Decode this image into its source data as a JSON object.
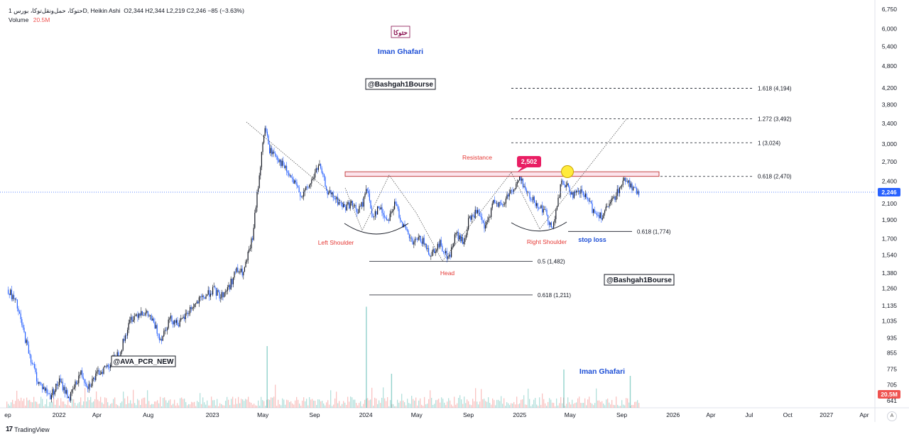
{
  "header": {
    "symbol": "1 حتوکا، حمل‌ونقل‌توکا، بورس‌D",
    "chart_style": "Heikin Ashi",
    "ohlc": "O2,344  H2,344  L2,219  C2,246  −85 (−3.63%)",
    "volume_label": "Volume",
    "volume_value": "20.5M"
  },
  "footer": {
    "brand": "TradingView",
    "auto_label": "A"
  },
  "chart_data": {
    "type": "line",
    "style": "heikin-ashi candles",
    "y_scale": "log",
    "ylim": [
      641,
      6750
    ],
    "y_ticks": [
      "6,750",
      "6,000",
      "5,400",
      "4,800",
      "4,200",
      "3,800",
      "3,400",
      "3,000",
      "2,700",
      "2,400",
      "2,100",
      "1,900",
      "1,700",
      "1,540",
      "1,380",
      "1,260",
      "1,135",
      "1,035",
      "935",
      "855",
      "775",
      "705",
      "641"
    ],
    "y_tick_values": [
      6750,
      6000,
      5400,
      4800,
      4200,
      3800,
      3400,
      3000,
      2700,
      2400,
      2100,
      1900,
      1700,
      1540,
      1380,
      1260,
      1135,
      1035,
      935,
      855,
      775,
      705,
      641
    ],
    "x_ticks": [
      "ep",
      "2022",
      "Apr",
      "Aug",
      "2023",
      "May",
      "Sep",
      "2024",
      "May",
      "Sep",
      "2025",
      "May",
      "Sep",
      "2026",
      "Apr",
      "Jul",
      "Oct",
      "2027",
      "Apr"
    ],
    "x_tick_dates": [
      "2021-09-01",
      "2022-01-01",
      "2022-04-01",
      "2022-08-01",
      "2023-01-01",
      "2023-05-01",
      "2023-09-01",
      "2024-01-01",
      "2024-05-01",
      "2024-09-01",
      "2025-01-01",
      "2025-05-01",
      "2025-09-01",
      "2026-01-01",
      "2026-04-01",
      "2026-07-01",
      "2026-10-01",
      "2027-01-01",
      "2027-04-01"
    ],
    "price_series": {
      "dates": [
        "2021-09-01",
        "2021-09-20",
        "2021-10-15",
        "2021-11-10",
        "2021-12-10",
        "2022-01-01",
        "2022-01-25",
        "2022-02-20",
        "2022-03-10",
        "2022-04-05",
        "2022-05-01",
        "2022-05-25",
        "2022-06-20",
        "2022-07-15",
        "2022-08-05",
        "2022-08-30",
        "2022-09-20",
        "2022-10-15",
        "2022-11-10",
        "2022-12-05",
        "2023-01-01",
        "2023-01-20",
        "2023-02-10",
        "2023-02-25",
        "2023-03-15",
        "2023-04-05",
        "2023-04-25",
        "2023-05-05",
        "2023-05-15",
        "2023-06-01",
        "2023-06-20",
        "2023-07-10",
        "2023-08-01",
        "2023-08-20",
        "2023-09-10",
        "2023-10-01",
        "2023-10-20",
        "2023-11-10",
        "2023-11-25",
        "2023-12-10",
        "2023-12-25",
        "2024-01-01",
        "2024-01-15",
        "2024-02-01",
        "2024-02-20",
        "2024-03-10",
        "2024-04-01",
        "2024-04-20",
        "2024-05-10",
        "2024-06-01",
        "2024-06-25",
        "2024-07-15",
        "2024-08-01",
        "2024-08-20",
        "2024-09-01",
        "2024-09-20",
        "2024-10-10",
        "2024-11-01",
        "2024-11-20",
        "2024-12-05",
        "2024-12-20",
        "2025-01-01",
        "2025-01-20",
        "2025-02-10",
        "2025-03-01",
        "2025-03-20",
        "2025-04-10",
        "2025-04-25",
        "2025-05-10",
        "2025-05-25",
        "2025-06-10",
        "2025-06-25",
        "2025-07-15",
        "2025-08-05",
        "2025-08-25",
        "2025-09-10",
        "2025-09-25",
        "2025-10-05",
        "2025-10-12"
      ],
      "values": [
        1250,
        1150,
        900,
        720,
        660,
        720,
        650,
        760,
        700,
        760,
        800,
        860,
        1050,
        1100,
        1060,
        930,
        1050,
        1020,
        1120,
        1180,
        1250,
        1200,
        1280,
        1400,
        1380,
        1700,
        2700,
        3350,
        2900,
        2800,
        2600,
        2400,
        2200,
        2350,
        2650,
        2250,
        2150,
        2050,
        2100,
        2000,
        2100,
        2350,
        1950,
        2050,
        1900,
        2100,
        1800,
        1650,
        1700,
        1550,
        1650,
        1500,
        1750,
        1650,
        1900,
        2000,
        1800,
        2150,
        2050,
        2250,
        2300,
        2470,
        2200,
        2100,
        2000,
        1800,
        2400,
        2300,
        2200,
        2250,
        2150,
        2000,
        1950,
        2100,
        2300,
        2450,
        2300,
        2240,
        2246
      ]
    },
    "volume_series": {
      "note": "volume bars at bottom of pane",
      "spikes": [
        {
          "date": "2023-05-10",
          "value": 5.8
        },
        {
          "date": "2024-01-01",
          "value": 9.5
        },
        {
          "date": "2024-03-01",
          "value": 3.2
        },
        {
          "date": "2025-04-15",
          "value": 3.6
        },
        {
          "date": "2025-09-20",
          "value": 3.0
        }
      ]
    },
    "current_price": "2,246",
    "current_volume": "20.5M",
    "annotations": {
      "resistance_label": "Resistance",
      "price_badge": "2,502",
      "left_shoulder": "Left Shoulder",
      "head": "Head",
      "right_shoulder": "Right Shoulder",
      "stop_loss": "stop loss",
      "watermark_fa": "حتوکا",
      "author_top": "Iman Ghafari",
      "author_bottom": "Iman Ghafari",
      "handle_top": "@Bashgah1Bourse",
      "handle_mid": "@Bashgah1Bourse",
      "handle_left": "@AVA_PCR_NEW"
    },
    "levels": [
      {
        "label": "1.618 (4,194)",
        "value": 4194,
        "style": "dashed"
      },
      {
        "label": "1.272 (3,492)",
        "value": 3492,
        "style": "dashed"
      },
      {
        "label": "1 (3,024)",
        "value": 3024,
        "style": "dashed"
      },
      {
        "label": "0.618 (2,470)",
        "value": 2470,
        "style": "dashed"
      },
      {
        "label": "0.618 (1,774)",
        "value": 1774,
        "style": "solid"
      },
      {
        "label": "0.5 (1,482)",
        "value": 1482,
        "style": "solid"
      },
      {
        "label": "0.618 (1,211)",
        "value": 1211,
        "style": "solid"
      }
    ],
    "colors": {
      "up": "#131722",
      "down": "#2962ff",
      "resistance": "#b71c1c",
      "annotation_red": "#e53935",
      "annotation_blue": "#1e4fd6",
      "price_tag": "#2962ff",
      "volume_tag": "#ef5350",
      "badge": "#e91e63",
      "marker": "#ffeb3b"
    },
    "grid": false,
    "legend": "top-left"
  }
}
